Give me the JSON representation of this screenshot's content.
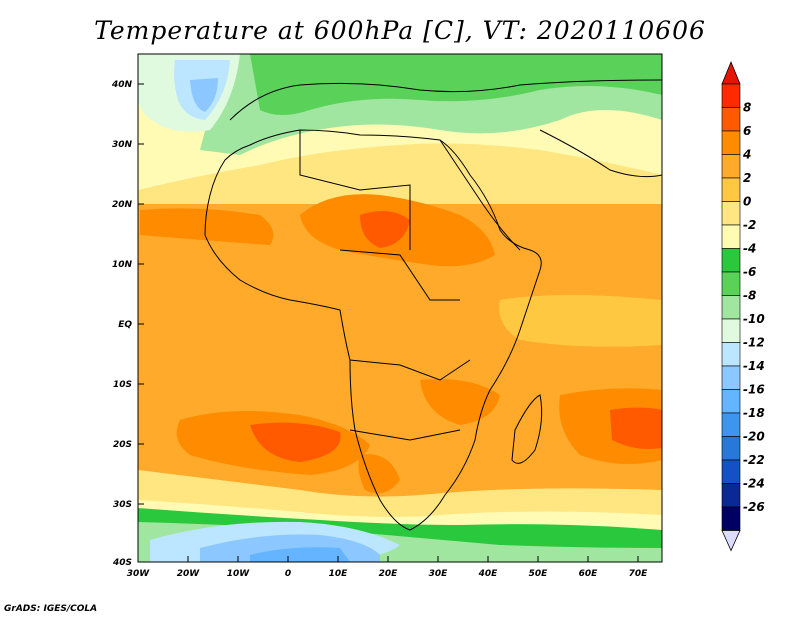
{
  "title": "Temperature at 600hPa [C], VT: 2020110606",
  "credit": "GrADS: IGES/COLA",
  "axes": {
    "lat_ticks": [
      "40N",
      "30N",
      "20N",
      "10N",
      "EQ",
      "10S",
      "20S",
      "30S",
      "40S"
    ],
    "lon_ticks": [
      "30W",
      "20W",
      "10W",
      "0",
      "10E",
      "20E",
      "30E",
      "40E",
      "50E",
      "60E",
      "70E"
    ]
  },
  "colorbar": {
    "labels": [
      "8",
      "6",
      "4",
      "2",
      "0",
      "-2",
      "-4",
      "-6",
      "-8",
      "-10",
      "-12",
      "-14",
      "-16",
      "-18",
      "-20",
      "-22",
      "-24",
      "-26"
    ],
    "colors": [
      "#ff2a00",
      "#ff5a00",
      "#ff8c00",
      "#ffaa2a",
      "#ffc840",
      "#ffe680",
      "#fffab4",
      "#2ac83c",
      "#5ad25a",
      "#a0e6a0",
      "#e0fae0",
      "#bce6ff",
      "#8cc8ff",
      "#64b4ff",
      "#3c96f0",
      "#2878dc",
      "#1450c8",
      "#0a2896",
      "#000064"
    ],
    "over_color": "#e61400",
    "under_color": "#dcdcff"
  }
}
